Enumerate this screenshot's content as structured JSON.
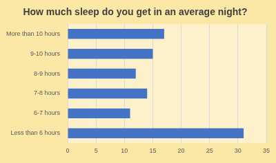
{
  "chart_data": {
    "type": "bar",
    "title": "How much sleep do you get in an average night?",
    "orientation": "horizontal",
    "categories": [
      "More than 10 hours",
      "9-10 hours",
      "8-9 hours",
      "7-8 hours",
      "6-7 hours",
      "Less than 6 hours"
    ],
    "values": [
      17,
      15,
      12,
      14,
      11,
      31
    ],
    "color": "#4472c4",
    "xlim": [
      0,
      35
    ],
    "xticks": [
      0,
      5,
      10,
      15,
      20,
      25,
      30,
      35
    ],
    "grid": true
  }
}
